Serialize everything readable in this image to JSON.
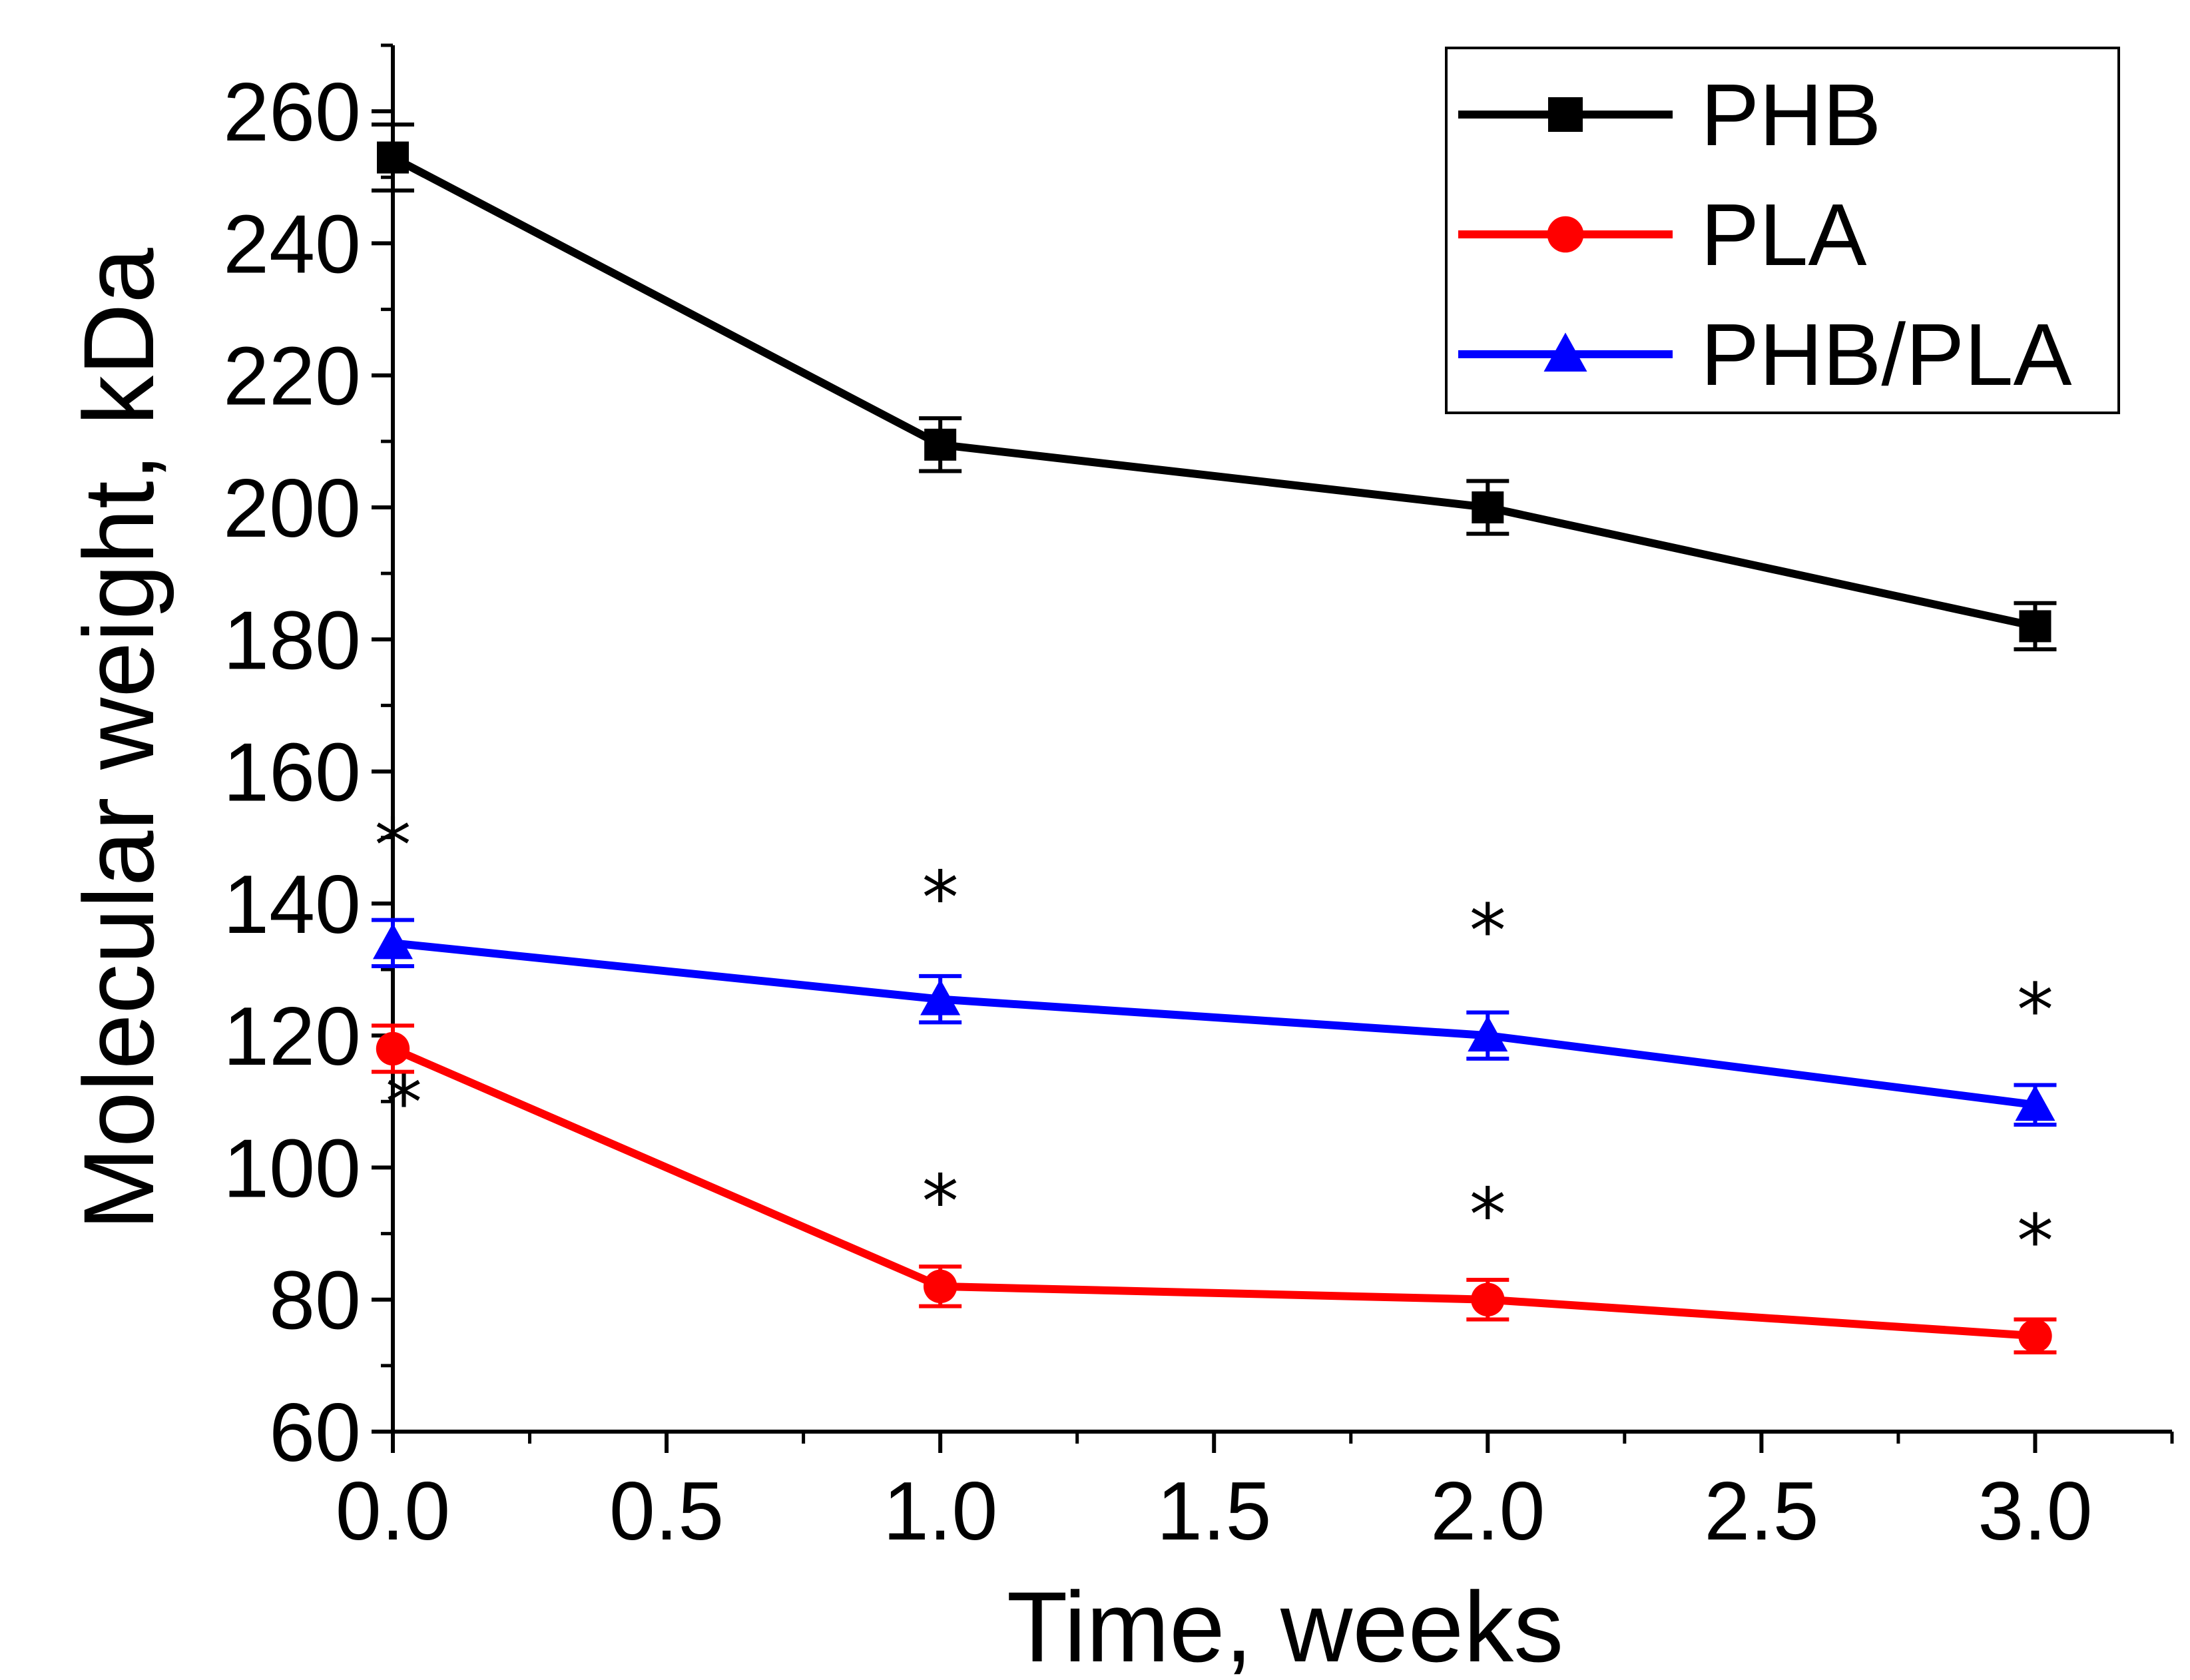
{
  "chart_data": {
    "type": "line",
    "xlabel": "Time, weeks",
    "ylabel": "Molecular weight, kDa",
    "xlim": [
      0.0,
      3.25
    ],
    "ylim": [
      60,
      270
    ],
    "xticks": [
      0.0,
      0.5,
      1.0,
      1.5,
      2.0,
      2.5,
      3.0
    ],
    "xtick_labels": [
      "0.0",
      "0.5",
      "1.0",
      "1.5",
      "2.0",
      "2.5",
      "3.0"
    ],
    "yticks": [
      60,
      80,
      100,
      120,
      140,
      160,
      180,
      200,
      220,
      240,
      260
    ],
    "ytick_labels": [
      "60",
      "80",
      "100",
      "120",
      "140",
      "160",
      "180",
      "200",
      "220",
      "240",
      "260"
    ],
    "grid": false,
    "legend_position": "top-right",
    "x": [
      0,
      1,
      2,
      3
    ],
    "series": [
      {
        "name": "PHB",
        "color": "#000000",
        "marker": "square",
        "values": [
          253,
          209.5,
          200,
          182
        ],
        "errors": [
          5,
          4,
          4,
          3.5
        ]
      },
      {
        "name": "PLA",
        "color": "#ff0000",
        "marker": "circle",
        "values": [
          118,
          82,
          80,
          74.5
        ],
        "errors": [
          3.5,
          3,
          3,
          2.5
        ]
      },
      {
        "name": "PHB/PLA",
        "color": "#0000ff",
        "marker": "triangle",
        "values": [
          134,
          125.5,
          120,
          109.5
        ],
        "errors": [
          3.5,
          3.5,
          3.5,
          3
        ]
      }
    ],
    "annotations": [
      {
        "text": "*",
        "x": 0.0,
        "y": 145
      },
      {
        "text": "*",
        "x": 0.02,
        "y": 106
      },
      {
        "text": "*",
        "x": 1.0,
        "y": 137
      },
      {
        "text": "*",
        "x": 2.0,
        "y": 132
      },
      {
        "text": "*",
        "x": 3.0,
        "y": 120
      },
      {
        "text": "*",
        "x": 1.0,
        "y": 91
      },
      {
        "text": "*",
        "x": 2.0,
        "y": 89
      },
      {
        "text": "*",
        "x": 3.0,
        "y": 85
      }
    ]
  }
}
